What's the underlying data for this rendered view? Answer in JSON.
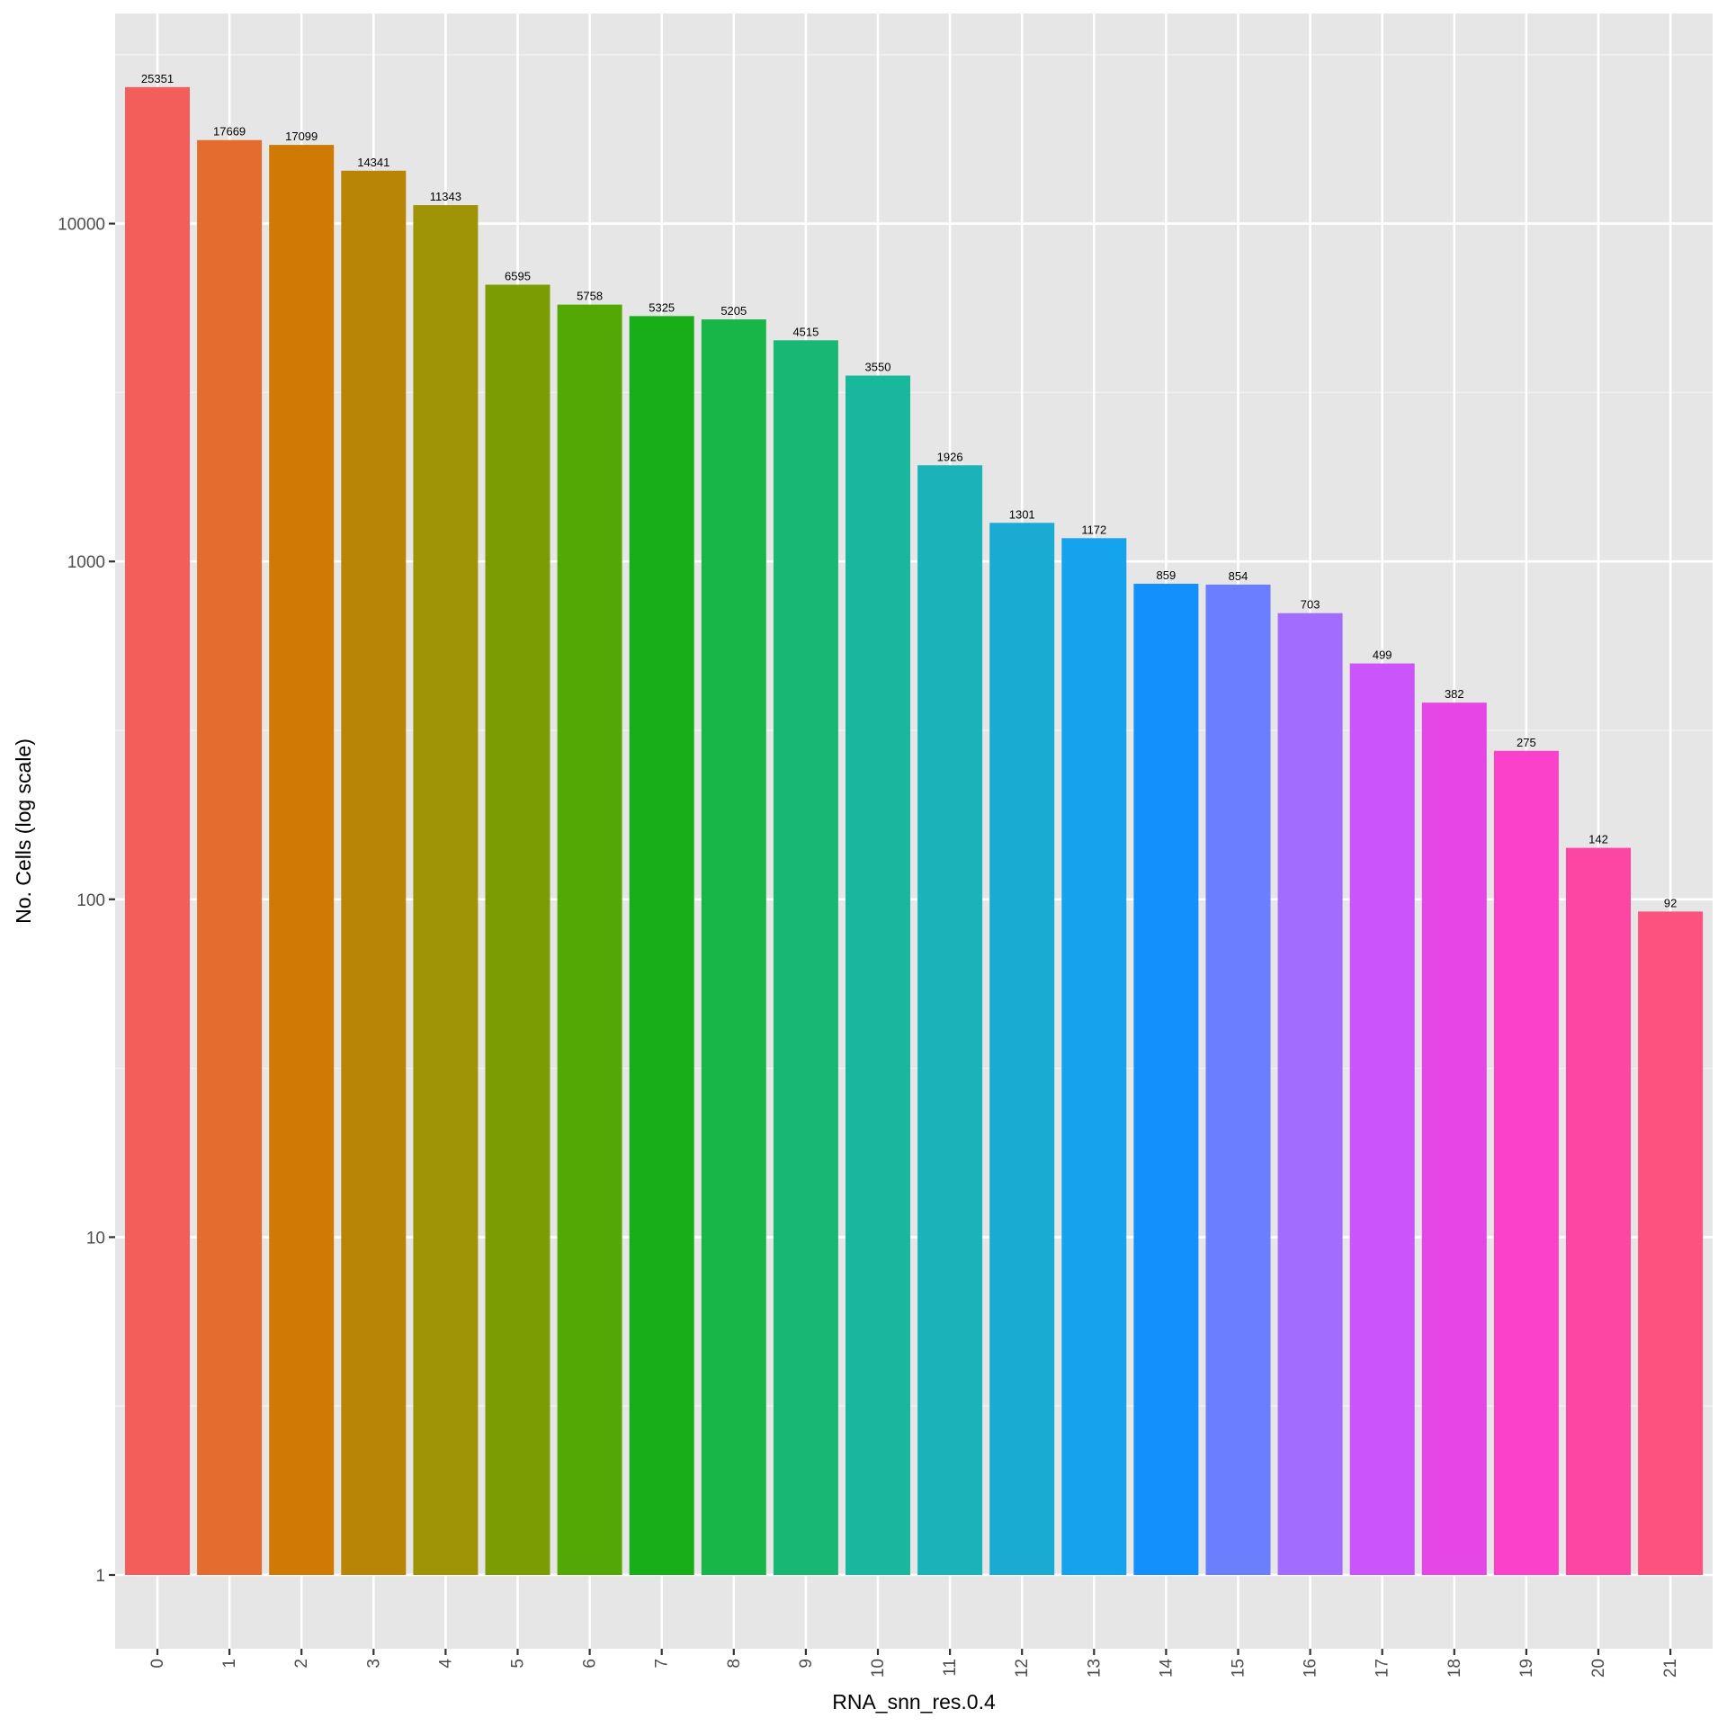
{
  "chart_data": {
    "type": "bar",
    "title": "",
    "xlabel": "RNA_snn_res.0.4",
    "ylabel": "No. Cells (log scale)",
    "yscale": "log10",
    "ylim": [
      0.6,
      40000
    ],
    "yticks": [
      1,
      10,
      100,
      1000,
      10000
    ],
    "ytick_labels": [
      "1",
      "10",
      "100",
      "1000",
      "10000"
    ],
    "grid": true,
    "legend": "none",
    "categories": [
      "0",
      "1",
      "2",
      "3",
      "4",
      "5",
      "6",
      "7",
      "8",
      "9",
      "10",
      "11",
      "12",
      "13",
      "14",
      "15",
      "16",
      "17",
      "18",
      "19",
      "20",
      "21"
    ],
    "values": [
      25351,
      17669,
      17099,
      14341,
      11343,
      6595,
      5758,
      5325,
      5205,
      4515,
      3550,
      1926,
      1301,
      1172,
      859,
      854,
      703,
      499,
      382,
      275,
      142,
      92
    ],
    "data_labels": [
      "25351",
      "17669",
      "17099",
      "14341",
      "11343",
      "6595",
      "5758",
      "5325",
      "5205",
      "4515",
      "3550",
      "1926",
      "1301",
      "1172",
      "859",
      "854",
      "703",
      "499",
      "382",
      "275",
      "142",
      "92"
    ],
    "colors": [
      "#F35E5A",
      "#E46C2E",
      "#D07A05",
      "#B98506",
      "#9E9405",
      "#7C9C04",
      "#53A806",
      "#18AE18",
      "#18B548",
      "#19B774",
      "#19B79C",
      "#19B3B9",
      "#19ABD2",
      "#15A3EE",
      "#1490FD",
      "#6A7EFE",
      "#A26CFE",
      "#CB55FB",
      "#E646E5",
      "#FB41C9",
      "#FD46A4",
      "#FD5280"
    ]
  }
}
